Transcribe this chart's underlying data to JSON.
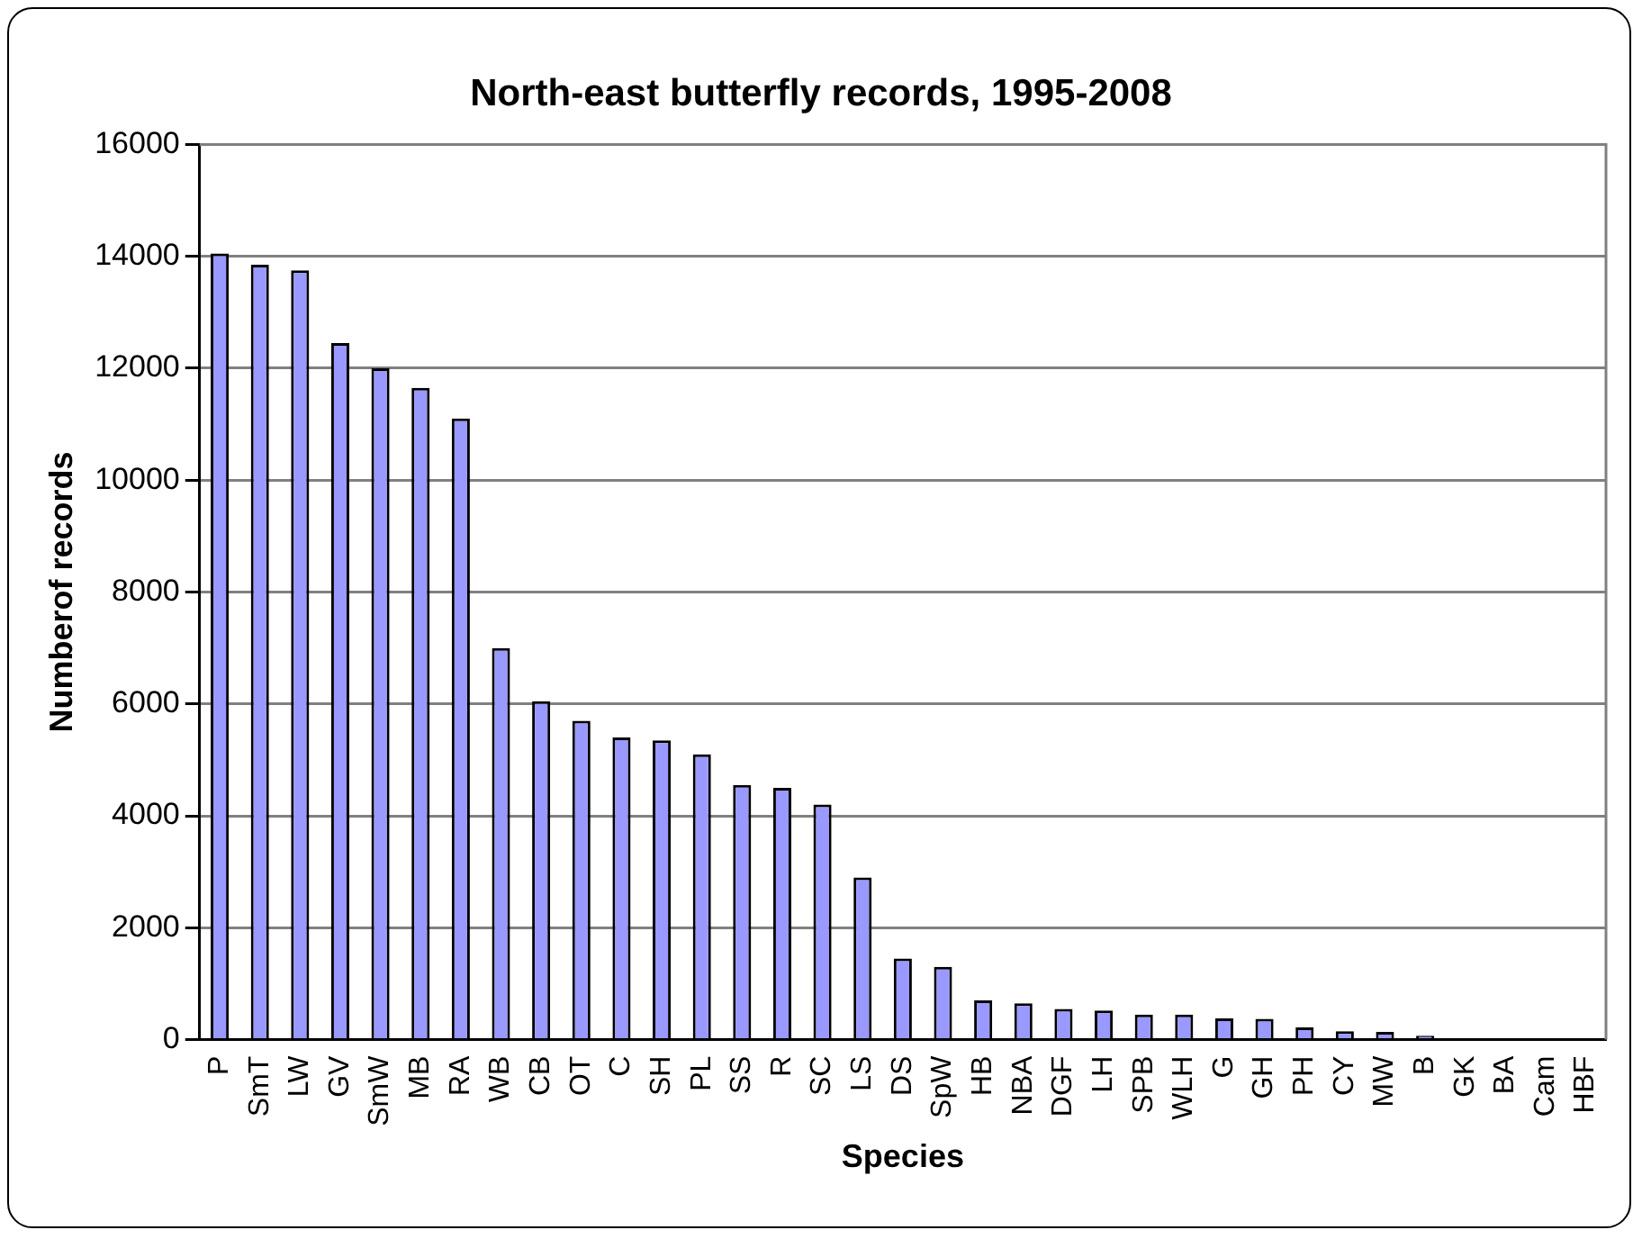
{
  "chart_data": {
    "type": "bar",
    "title": "North-east butterfly records, 1995-2008",
    "xlabel": "Species",
    "ylabel": "Numberof records",
    "categories": [
      "P",
      "SmT",
      "LW",
      "GV",
      "SmW",
      "MB",
      "RA",
      "WB",
      "CB",
      "OT",
      "C",
      "SH",
      "PL",
      "SS",
      "R",
      "SC",
      "LS",
      "DS",
      "SpW",
      "HB",
      "NBA",
      "DGF",
      "LH",
      "SPB",
      "WLH",
      "G",
      "GH",
      "PH",
      "CY",
      "MW",
      "B",
      "GK",
      "BA",
      "Cam",
      "HBF"
    ],
    "values": [
      14050,
      13850,
      13750,
      12450,
      12000,
      11650,
      11100,
      7000,
      6050,
      5700,
      5400,
      5350,
      5100,
      4550,
      4500,
      4200,
      2900,
      1450,
      1300,
      700,
      650,
      550,
      520,
      450,
      450,
      380,
      370,
      220,
      150,
      140,
      70,
      0,
      0,
      0,
      0
    ],
    "color": "#9999ff",
    "ylim": [
      0,
      16000
    ],
    "yticks": [
      0,
      2000,
      4000,
      6000,
      8000,
      10000,
      12000,
      14000,
      16000
    ],
    "grid": "y",
    "legend": false
  }
}
